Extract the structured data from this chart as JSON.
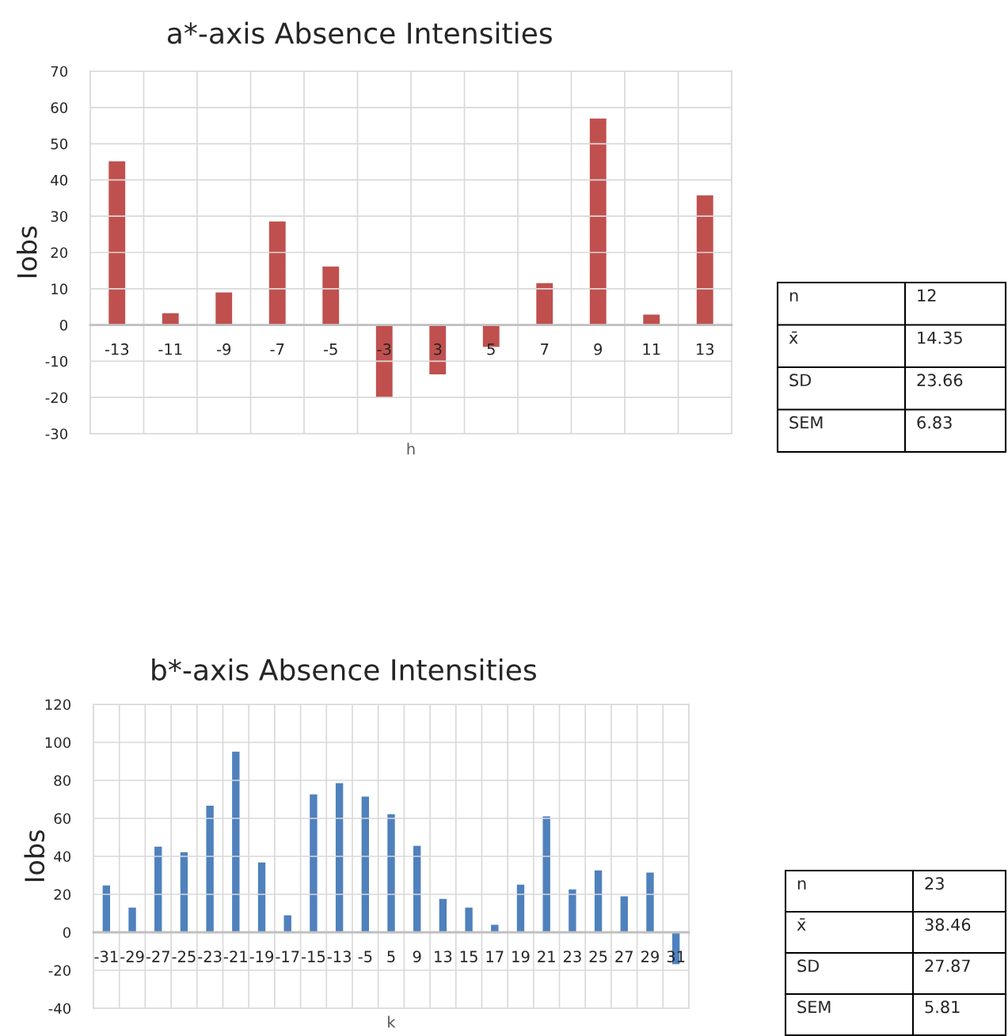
{
  "chart_data": [
    {
      "type": "bar",
      "title": "a*-axis Absence Intensities",
      "xlabel": "h",
      "ylabel": "Iobs",
      "categories": [
        "-13",
        "-11",
        "-9",
        "-7",
        "-5",
        "-3",
        "3",
        "5",
        "7",
        "9",
        "11",
        "13"
      ],
      "values": [
        45.3,
        3.4,
        9.1,
        28.7,
        16.3,
        -20.2,
        -13.8,
        -6.2,
        11.7,
        57.1,
        3.0,
        35.9
      ],
      "color": "#c0504d",
      "ylim": [
        -30,
        70
      ],
      "yticks": [
        -30,
        -20,
        -10,
        0,
        10,
        20,
        30,
        40,
        50,
        60,
        70
      ],
      "grid": true,
      "annotations": [
        "n",
        "12",
        "x̄",
        "14.35",
        "SD",
        "23.66",
        "SEM",
        "6.83"
      ]
    },
    {
      "type": "bar",
      "title": "b*-axis Absence Intensities",
      "xlabel": "k",
      "ylabel": "Iobs",
      "categories": [
        "-31",
        "-29",
        "-27",
        "-25",
        "-23",
        "-21",
        "-19",
        "-17",
        "-15",
        "-13",
        "-5",
        "5",
        "9",
        "13",
        "15",
        "17",
        "19",
        "21",
        "23",
        "25",
        "27",
        "29",
        "31"
      ],
      "values": [
        25,
        13.3,
        45.4,
        42.5,
        67,
        95.4,
        37.1,
        9.2,
        72.9,
        78.8,
        71.7,
        62.5,
        45.8,
        17.9,
        13.3,
        4.2,
        25.4,
        61.3,
        22.9,
        32.9,
        19.2,
        31.7,
        -17.1
      ],
      "color": "#4f81bd",
      "ylim": [
        -40,
        120
      ],
      "yticks": [
        -40,
        -20,
        0,
        20,
        40,
        60,
        80,
        100,
        120
      ],
      "grid": true,
      "annotations": [
        "n",
        "23",
        "x̄",
        "38.46",
        "SD",
        "27.87",
        "SEM",
        "5.81"
      ]
    }
  ]
}
